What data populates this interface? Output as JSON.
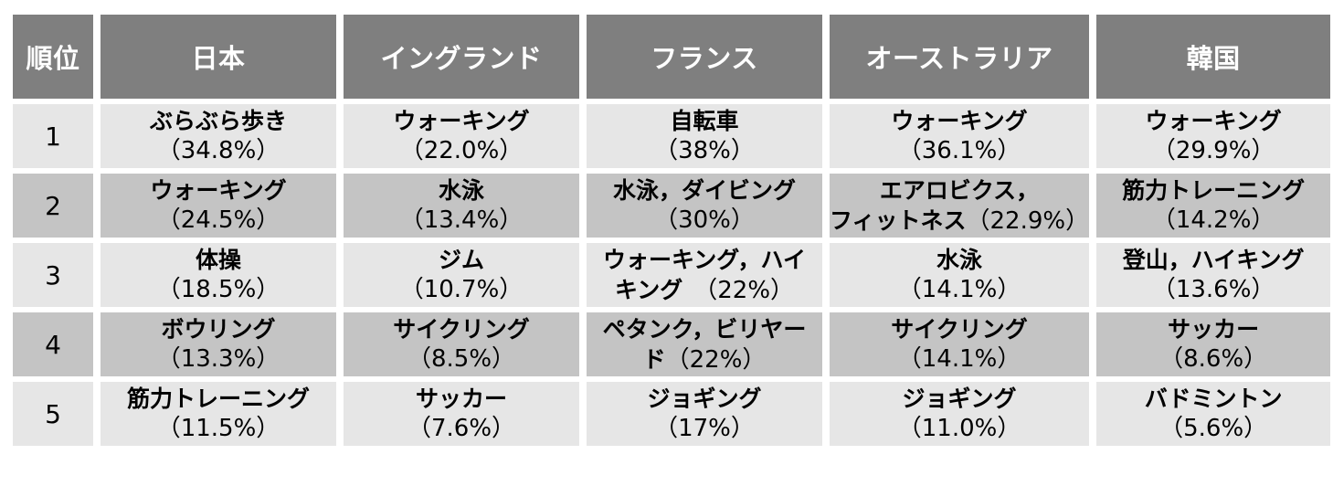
{
  "headers": [
    "順位",
    "日本",
    "イングランド",
    "フランス",
    "オーストラリア",
    "韓国"
  ],
  "rows": [
    {
      "rank": "1",
      "cells": [
        {
          "name": "ぶらぶら歩き",
          "pct": "（34.8%）"
        },
        {
          "name": "ウォーキング",
          "pct": "（22.0%）"
        },
        {
          "name": "自転車",
          "pct": "（38%）"
        },
        {
          "name": "ウォーキング",
          "pct": "（36.1%）"
        },
        {
          "name": "ウォーキング",
          "pct": "（29.9%）"
        }
      ]
    },
    {
      "rank": "2",
      "cells": [
        {
          "name": "ウォーキング",
          "pct": "（24.5%）"
        },
        {
          "name": "水泳",
          "pct": "（13.4%）"
        },
        {
          "name": "水泳，ダイビング",
          "pct": "（30%）"
        },
        {
          "line1": "エアロビクス，",
          "line2": "フィットネス",
          "line2_pct": "（22.9%）"
        },
        {
          "name": "筋力トレーニング",
          "pct": "（14.2%）"
        }
      ]
    },
    {
      "rank": "3",
      "cells": [
        {
          "name": "体操",
          "pct": "（18.5%）"
        },
        {
          "name": "ジム",
          "pct": "（10.7%）"
        },
        {
          "line1": "ウォーキング，ハイ",
          "line2": "キング　",
          "line2_pct": "（22%）"
        },
        {
          "name": "水泳",
          "pct": "（14.1%）"
        },
        {
          "name": "登山，ハイキング",
          "pct": "（13.6%）"
        }
      ]
    },
    {
      "rank": "4",
      "cells": [
        {
          "name": "ボウリング",
          "pct": "（13.3%）"
        },
        {
          "name": "サイクリング",
          "pct": "（8.5%）"
        },
        {
          "line1": "ペタンク，ビリヤー",
          "line2": "ド",
          "line2_pct": "（22%）"
        },
        {
          "name": "サイクリング",
          "pct": "（14.1%）"
        },
        {
          "name": "サッカー",
          "pct": "（8.6%）"
        }
      ]
    },
    {
      "rank": "5",
      "cells": [
        {
          "name": "筋力トレーニング",
          "pct": "（11.5%）"
        },
        {
          "name": "サッカー",
          "pct": "（7.6%）"
        },
        {
          "name": "ジョギング",
          "pct": "（17%）"
        },
        {
          "name": "ジョギング",
          "pct": "（11.0%）"
        },
        {
          "name": "バドミントン",
          "pct": "（5.6%）"
        }
      ]
    }
  ]
}
